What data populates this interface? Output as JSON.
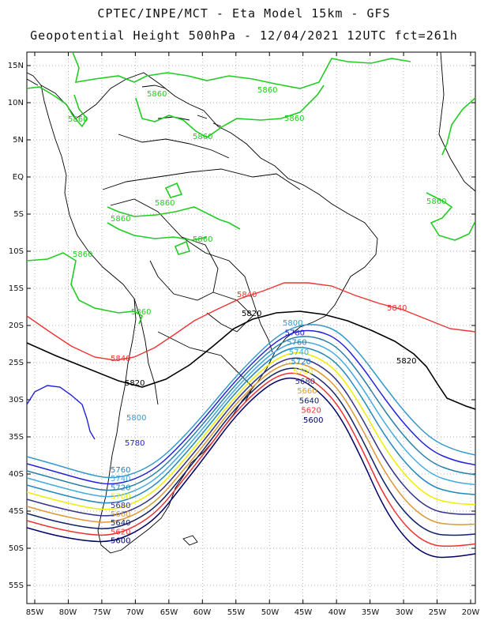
{
  "header": {
    "line1": "CPTEC/INPE/MCT -  Eta Model 15km - GFS",
    "line2": "Geopotential Height 500hPa - 12/04/2021 12UTC fct=261h"
  },
  "axes": {
    "lat_labels": [
      "15N",
      "10N",
      "5N",
      "EQ",
      "5S",
      "10S",
      "15S",
      "20S",
      "25S",
      "30S",
      "35S",
      "40S",
      "45S",
      "50S",
      "55S"
    ],
    "lon_labels": [
      "85W",
      "80W",
      "75W",
      "70W",
      "65W",
      "60W",
      "55W",
      "50W",
      "45W",
      "40W",
      "35W",
      "30W",
      "25W",
      "20W"
    ]
  },
  "colors": {
    "c5860": "#22cc22",
    "c5840": "#ee3333",
    "c5820": "#000000",
    "c5800": "#3399cc",
    "c5780": "#2222dd",
    "c5760": "#2a7fa8",
    "c5740": "#44aadd",
    "c5720": "#2288bb",
    "c5700": "#eeee00",
    "c5680": "#333388",
    "c5660": "#dd9933",
    "c5640": "#112266",
    "c5620": "#ee3333",
    "c5600": "#000066",
    "coast": "#000000"
  },
  "contour_labels": {
    "green": [
      "5860",
      "5860",
      "5860",
      "5860",
      "5860",
      "5860",
      "5860",
      "5860",
      "5860",
      "5860",
      "5860"
    ],
    "red_5840": [
      "5840",
      "5840",
      "5840"
    ],
    "black_5820": [
      "5820",
      "5820",
      "5820"
    ],
    "blue_east": [
      "5800",
      "5780",
      "5760",
      "5740",
      "5720",
      "5700",
      "5680",
      "5660",
      "5640",
      "5620",
      "5600"
    ],
    "blue_west": [
      "5800",
      "5780",
      "5760",
      "5740",
      "5720",
      "5700",
      "5680",
      "5660",
      "5640",
      "5620",
      "5600"
    ]
  }
}
